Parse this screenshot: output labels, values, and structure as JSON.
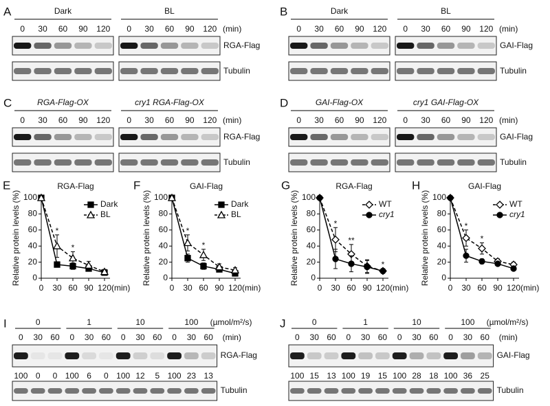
{
  "blots": [
    {
      "letter": "A",
      "unit": "(min)",
      "groups": [
        {
          "label": "Dark",
          "italic": false,
          "times": [
            "0",
            "30",
            "60",
            "90",
            "120"
          ]
        },
        {
          "label": "BL",
          "italic": false,
          "times": [
            "0",
            "30",
            "60",
            "90",
            "120"
          ]
        }
      ],
      "rows": [
        "RGA-Flag",
        "Tubulin"
      ]
    },
    {
      "letter": "B",
      "unit": "(min)",
      "groups": [
        {
          "label": "Dark",
          "italic": false,
          "times": [
            "0",
            "30",
            "60",
            "90",
            "120"
          ]
        },
        {
          "label": "BL",
          "italic": false,
          "times": [
            "0",
            "30",
            "60",
            "90",
            "120"
          ]
        }
      ],
      "rows": [
        "GAI-Flag",
        "Tubulin"
      ]
    },
    {
      "letter": "C",
      "unit": "(min)",
      "groups": [
        {
          "label": "RGA-Flag-OX",
          "italic": true,
          "times": [
            "0",
            "30",
            "60",
            "90",
            "120"
          ]
        },
        {
          "label": "cry1 RGA-Flag-OX",
          "italic": true,
          "times": [
            "0",
            "30",
            "60",
            "90",
            "120"
          ]
        }
      ],
      "rows": [
        "RGA-Flag",
        "Tubulin"
      ]
    },
    {
      "letter": "D",
      "unit": "(min)",
      "groups": [
        {
          "label": "GAI-Flag-OX",
          "italic": true,
          "times": [
            "0",
            "30",
            "60",
            "90",
            "120"
          ]
        },
        {
          "label": "cry1 GAI-Flag-OX",
          "italic": true,
          "times": [
            "0",
            "30",
            "60",
            "90",
            "120"
          ]
        }
      ],
      "rows": [
        "GAI-Flag",
        "Tubulin"
      ]
    }
  ],
  "dose_blots": [
    {
      "letter": "I",
      "dose_unit": "(µmol/m²/s)",
      "time_unit": "(min)",
      "doses": [
        "0",
        "1",
        "10",
        "100"
      ],
      "times": [
        "0",
        "30",
        "60"
      ],
      "rows": [
        "RGA-Flag",
        "Tubulin"
      ],
      "levels": [
        100,
        0,
        0,
        100,
        6,
        0,
        100,
        12,
        5,
        100,
        23,
        13
      ]
    },
    {
      "letter": "J",
      "dose_unit": "(µmol/m²/s)",
      "time_unit": "(min)",
      "doses": [
        "0",
        "1",
        "10",
        "100"
      ],
      "times": [
        "0",
        "30",
        "60"
      ],
      "rows": [
        "GAI-Flag",
        "Tubulin"
      ],
      "levels": [
        100,
        15,
        13,
        100,
        19,
        15,
        100,
        28,
        18,
        100,
        36,
        25
      ]
    }
  ],
  "chart_data": [
    {
      "letter": "E",
      "type": "line",
      "title": "RGA-Flag",
      "y_label": "Relative protein levels (%)",
      "x_unit": "(min)",
      "x": [
        0,
        30,
        60,
        90,
        120
      ],
      "xlim": [
        0,
        120
      ],
      "xticks": [
        0,
        30,
        60,
        90,
        120
      ],
      "ylim": [
        0,
        100
      ],
      "yticks": [
        0,
        20,
        40,
        60,
        80,
        100
      ],
      "series": [
        {
          "name": "Dark",
          "color": "#000000",
          "marker": "square",
          "dashed": false,
          "italic": false,
          "values": [
            100,
            17,
            15,
            12,
            7
          ],
          "errors": [
            0,
            3,
            4,
            3,
            2
          ]
        },
        {
          "name": "BL",
          "color": "#000000",
          "marker": "triangle",
          "dashed": true,
          "italic": false,
          "values": [
            100,
            40,
            25,
            16,
            8
          ],
          "errors": [
            0,
            14,
            8,
            5,
            3
          ]
        }
      ],
      "annotations": [
        {
          "x": 30,
          "text": "*"
        },
        {
          "x": 60,
          "text": "*"
        }
      ]
    },
    {
      "letter": "F",
      "type": "line",
      "title": "GAI-Flag",
      "y_label": "Relative protein levels (%)",
      "x_unit": "(min)",
      "x": [
        0,
        30,
        60,
        90,
        120
      ],
      "xlim": [
        0,
        120
      ],
      "xticks": [
        0,
        30,
        60,
        90,
        120
      ],
      "ylim": [
        0,
        100
      ],
      "yticks": [
        0,
        20,
        40,
        60,
        80,
        100
      ],
      "series": [
        {
          "name": "Dark",
          "color": "#000000",
          "marker": "square",
          "dashed": false,
          "italic": false,
          "values": [
            100,
            25,
            15,
            11,
            6
          ],
          "errors": [
            0,
            5,
            4,
            2,
            2
          ]
        },
        {
          "name": "BL",
          "color": "#000000",
          "marker": "triangle",
          "dashed": true,
          "italic": false,
          "values": [
            100,
            44,
            29,
            14,
            10
          ],
          "errors": [
            0,
            10,
            7,
            4,
            3
          ]
        }
      ],
      "annotations": [
        {
          "x": 30,
          "text": "*"
        },
        {
          "x": 60,
          "text": "*"
        }
      ]
    },
    {
      "letter": "G",
      "type": "line",
      "title": "RGA-Flag",
      "y_label": "Relative protein levels (%)",
      "x_unit": "(min)",
      "x": [
        0,
        30,
        60,
        90,
        120
      ],
      "xlim": [
        0,
        120
      ],
      "xticks": [
        0,
        30,
        60,
        90,
        120
      ],
      "ylim": [
        0,
        100
      ],
      "yticks": [
        0,
        20,
        40,
        60,
        80,
        100
      ],
      "series": [
        {
          "name": "WT",
          "color": "#000000",
          "marker": "diamond",
          "dashed": true,
          "italic": false,
          "values": [
            100,
            48,
            30,
            15,
            9
          ],
          "errors": [
            0,
            15,
            12,
            8,
            3
          ]
        },
        {
          "name": "cry1",
          "color": "#000000",
          "marker": "circle",
          "dashed": false,
          "italic": true,
          "values": [
            100,
            24,
            18,
            14,
            9
          ],
          "errors": [
            0,
            12,
            10,
            8,
            3
          ]
        }
      ],
      "annotations": [
        {
          "x": 30,
          "text": "*"
        },
        {
          "x": 60,
          "text": "**"
        },
        {
          "x": 120,
          "text": "*"
        }
      ]
    },
    {
      "letter": "H",
      "type": "line",
      "title": "GAI-Flag",
      "y_label": "Relative protein levels (%)",
      "x_unit": "(min)",
      "x": [
        0,
        30,
        60,
        90,
        120
      ],
      "xlim": [
        0,
        120
      ],
      "xticks": [
        0,
        30,
        60,
        90,
        120
      ],
      "ylim": [
        0,
        100
      ],
      "yticks": [
        0,
        20,
        40,
        60,
        80,
        100
      ],
      "series": [
        {
          "name": "WT",
          "color": "#000000",
          "marker": "diamond",
          "dashed": true,
          "italic": false,
          "values": [
            100,
            50,
            37,
            21,
            17
          ],
          "errors": [
            0,
            10,
            7,
            3,
            3
          ]
        },
        {
          "name": "cry1",
          "color": "#000000",
          "marker": "circle",
          "dashed": false,
          "italic": true,
          "values": [
            100,
            28,
            21,
            18,
            12
          ],
          "errors": [
            0,
            8,
            3,
            2,
            2
          ]
        }
      ],
      "annotations": [
        {
          "x": 30,
          "text": "*"
        },
        {
          "x": 60,
          "text": "*"
        }
      ]
    }
  ]
}
